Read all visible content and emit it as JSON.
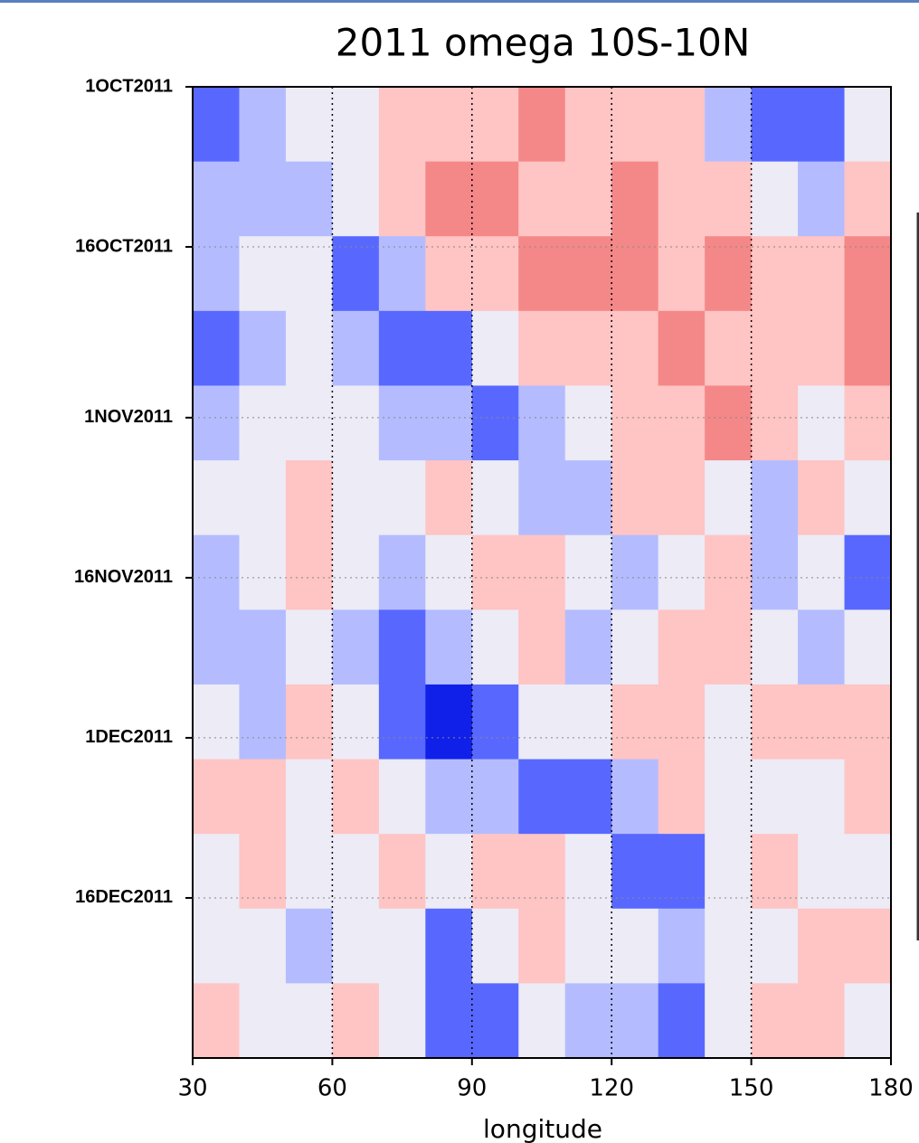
{
  "chart_data": {
    "type": "heatmap",
    "title": "2011 omega 10S-10N",
    "x_label": "longitude",
    "x": [
      35,
      45,
      55,
      65,
      75,
      85,
      95,
      105,
      115,
      125,
      135,
      145,
      155,
      165,
      175
    ],
    "y": [
      0,
      7,
      14,
      21,
      28,
      35,
      42,
      49,
      56,
      63,
      70,
      77,
      84
    ],
    "z": [
      [
        -2,
        -1,
        0,
        0,
        1,
        1,
        1,
        2,
        1,
        1,
        1,
        -1,
        -2,
        -2,
        0
      ],
      [
        -1,
        -1,
        -1,
        0,
        1,
        2,
        2,
        1,
        1,
        2,
        1,
        1,
        0,
        -1,
        1
      ],
      [
        -1,
        0,
        0,
        -2,
        -1,
        1,
        1,
        2,
        2,
        2,
        1,
        2,
        1,
        1,
        2
      ],
      [
        -2,
        -1,
        0,
        -1,
        -2,
        -2,
        0,
        1,
        1,
        1,
        2,
        1,
        1,
        1,
        2
      ],
      [
        -1,
        0,
        0,
        0,
        -1,
        -1,
        -2,
        -1,
        0,
        1,
        1,
        2,
        1,
        0,
        1
      ],
      [
        0,
        0,
        1,
        0,
        0,
        1,
        0,
        -1,
        -1,
        1,
        1,
        0,
        -1,
        1,
        0
      ],
      [
        -1,
        0,
        1,
        0,
        -1,
        0,
        1,
        1,
        0,
        -1,
        0,
        1,
        -1,
        0,
        -2
      ],
      [
        -1,
        -1,
        0,
        -1,
        -2,
        -1,
        0,
        1,
        -1,
        0,
        1,
        1,
        0,
        -1,
        0
      ],
      [
        0,
        -1,
        1,
        0,
        -2,
        -3,
        -2,
        0,
        0,
        1,
        1,
        0,
        1,
        1,
        1
      ],
      [
        1,
        1,
        0,
        1,
        0,
        -1,
        -1,
        -2,
        -2,
        -1,
        1,
        0,
        0,
        0,
        1
      ],
      [
        0,
        1,
        0,
        0,
        1,
        0,
        1,
        1,
        0,
        -2,
        -2,
        0,
        1,
        0,
        0
      ],
      [
        0,
        0,
        -1,
        0,
        0,
        -2,
        0,
        1,
        0,
        0,
        -1,
        0,
        0,
        1,
        1
      ],
      [
        1,
        0,
        0,
        1,
        0,
        -2,
        -2,
        0,
        -1,
        -1,
        -2,
        0,
        1,
        1,
        0
      ]
    ],
    "clevels": [
      -3,
      -2,
      -1,
      0,
      1,
      2
    ],
    "ccolors": [
      "#1020e8",
      "#5868ff",
      "#b4bcff",
      "#ecebf6",
      "#ffc4c4",
      "#f48888"
    ],
    "xlim": [
      30,
      180
    ],
    "xticks": [
      30,
      60,
      90,
      120,
      150,
      180
    ],
    "ylim": [
      0,
      91
    ],
    "yticks": [
      {
        "value": 0,
        "label": "1OCT2011"
      },
      {
        "value": 15,
        "label": "16OCT2011"
      },
      {
        "value": 31,
        "label": "1NOV2011"
      },
      {
        "value": 46,
        "label": "16NOV2011"
      },
      {
        "value": 61,
        "label": "1DEC2011"
      },
      {
        "value": 76,
        "label": "16DEC2011"
      }
    ],
    "grid": true
  }
}
